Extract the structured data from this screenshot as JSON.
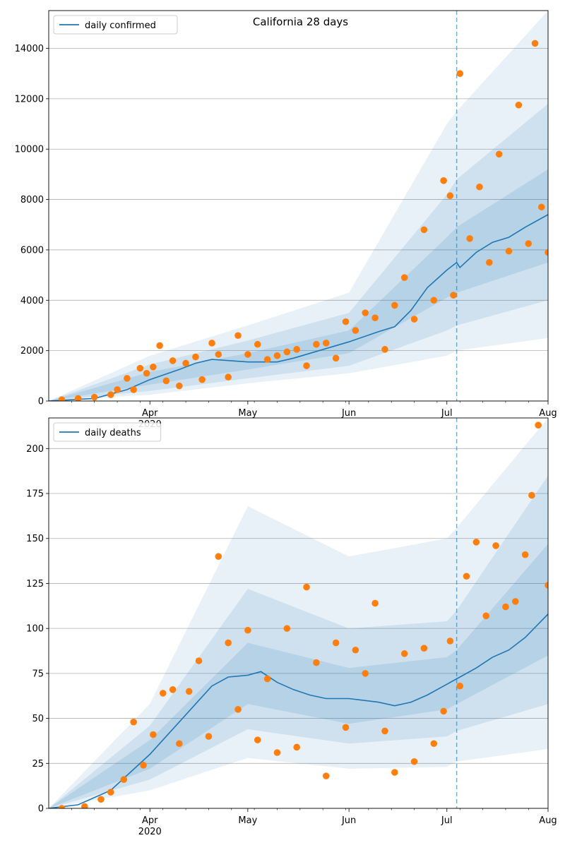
{
  "chart_data": [
    {
      "type": "line",
      "title": "California 28 days",
      "ylim": [
        0,
        15500
      ],
      "yticks": [
        0,
        2000,
        4000,
        6000,
        8000,
        10000,
        12000,
        14000
      ],
      "xticks": [
        {
          "x": "2020-04-01",
          "label": "Apr",
          "sublabel": "2020"
        },
        {
          "x": "2020-05-01",
          "label": "May"
        },
        {
          "x": "2020-06-01",
          "label": "Jun"
        },
        {
          "x": "2020-07-01",
          "label": "Jul"
        },
        {
          "x": "2020-08-01",
          "label": "Aug"
        }
      ],
      "xlim": [
        "2020-03-01",
        "2020-08-01"
      ],
      "forecast_start": "2020-07-04",
      "grid": "horizontal",
      "legend": {
        "position": "top-left",
        "entries": [
          {
            "label": "daily confirmed",
            "color": "#1f77b4"
          }
        ]
      },
      "colors": {
        "line": "#1f77b4",
        "points": "#ff7f0e",
        "band": "#1f77b4",
        "vline": "#1f77b4"
      },
      "series": [
        {
          "name": "daily confirmed",
          "kind": "line",
          "x": [
            "2020-03-01",
            "2020-03-15",
            "2020-03-25",
            "2020-04-01",
            "2020-04-10",
            "2020-04-15",
            "2020-04-20",
            "2020-05-01",
            "2020-05-10",
            "2020-05-15",
            "2020-06-01",
            "2020-06-10",
            "2020-06-15",
            "2020-06-20",
            "2020-06-25",
            "2020-07-01",
            "2020-07-04",
            "2020-07-05",
            "2020-07-10",
            "2020-07-15",
            "2020-07-20",
            "2020-07-25",
            "2020-08-01"
          ],
          "values": [
            0,
            100,
            450,
            850,
            1250,
            1500,
            1650,
            1550,
            1550,
            1700,
            2350,
            2750,
            2950,
            3600,
            4500,
            5200,
            5500,
            5300,
            5900,
            6300,
            6500,
            6900,
            7400
          ]
        },
        {
          "name": "observed daily confirmed",
          "kind": "scatter",
          "x": [
            "2020-03-05",
            "2020-03-10",
            "2020-03-15",
            "2020-03-20",
            "2020-03-22",
            "2020-03-25",
            "2020-03-27",
            "2020-03-29",
            "2020-03-31",
            "2020-04-02",
            "2020-04-04",
            "2020-04-06",
            "2020-04-08",
            "2020-04-10",
            "2020-04-12",
            "2020-04-15",
            "2020-04-17",
            "2020-04-20",
            "2020-04-22",
            "2020-04-25",
            "2020-04-28",
            "2020-05-01",
            "2020-05-04",
            "2020-05-07",
            "2020-05-10",
            "2020-05-13",
            "2020-05-16",
            "2020-05-19",
            "2020-05-22",
            "2020-05-25",
            "2020-05-28",
            "2020-05-31",
            "2020-06-03",
            "2020-06-06",
            "2020-06-09",
            "2020-06-12",
            "2020-06-15",
            "2020-06-18",
            "2020-06-21",
            "2020-06-24",
            "2020-06-27",
            "2020-06-30",
            "2020-07-02",
            "2020-07-03",
            "2020-07-05",
            "2020-07-08",
            "2020-07-11",
            "2020-07-14",
            "2020-07-17",
            "2020-07-20",
            "2020-07-23",
            "2020-07-26",
            "2020-07-28",
            "2020-07-30",
            "2020-08-01"
          ],
          "values": [
            50,
            100,
            150,
            250,
            450,
            900,
            450,
            1300,
            1100,
            1350,
            2200,
            800,
            1600,
            600,
            1500,
            1750,
            850,
            2300,
            1850,
            950,
            2600,
            1850,
            2250,
            1650,
            1800,
            1950,
            2050,
            1400,
            2250,
            2300,
            1700,
            3150,
            2800,
            3500,
            3300,
            2050,
            3800,
            4900,
            3250,
            6800,
            4000,
            8750,
            8150,
            4200,
            13000,
            6450,
            8500,
            5500,
            9800,
            5950,
            11750,
            6250,
            14200,
            7700,
            5900
          ]
        }
      ],
      "bands": [
        {
          "name": "inner interval",
          "x": [
            "2020-03-01",
            "2020-04-01",
            "2020-05-01",
            "2020-06-01",
            "2020-07-01",
            "2020-07-04",
            "2020-08-01"
          ],
          "low": [
            0,
            650,
            1250,
            1900,
            4100,
            4300,
            5500
          ],
          "high": [
            0,
            1150,
            1900,
            2800,
            6500,
            6900,
            9200
          ]
        },
        {
          "name": "middle interval",
          "x": [
            "2020-03-01",
            "2020-04-01",
            "2020-05-01",
            "2020-06-01",
            "2020-07-01",
            "2020-07-04",
            "2020-08-01"
          ],
          "low": [
            0,
            400,
            900,
            1400,
            2800,
            3000,
            4000
          ],
          "high": [
            0,
            1450,
            2400,
            3500,
            8200,
            8800,
            11800
          ]
        },
        {
          "name": "outer interval",
          "x": [
            "2020-03-01",
            "2020-04-01",
            "2020-05-01",
            "2020-06-01",
            "2020-07-01",
            "2020-07-04",
            "2020-08-01"
          ],
          "low": [
            0,
            250,
            700,
            1100,
            1800,
            2000,
            2500
          ],
          "high": [
            0,
            1800,
            3000,
            4300,
            11000,
            11500,
            15500
          ]
        }
      ]
    },
    {
      "type": "line",
      "title": "",
      "ylim": [
        0,
        217
      ],
      "yticks": [
        0,
        25,
        50,
        75,
        100,
        125,
        150,
        175,
        200
      ],
      "xticks": [
        {
          "x": "2020-04-01",
          "label": "Apr",
          "sublabel": "2020"
        },
        {
          "x": "2020-05-01",
          "label": "May"
        },
        {
          "x": "2020-06-01",
          "label": "Jun"
        },
        {
          "x": "2020-07-01",
          "label": "Jul"
        },
        {
          "x": "2020-08-01",
          "label": "Aug"
        }
      ],
      "xlim": [
        "2020-03-01",
        "2020-08-01"
      ],
      "forecast_start": "2020-07-04",
      "grid": "horizontal",
      "legend": {
        "position": "top-left",
        "entries": [
          {
            "label": "daily deaths",
            "color": "#1f77b4"
          }
        ]
      },
      "colors": {
        "line": "#1f77b4",
        "points": "#ff7f0e",
        "band": "#1f77b4",
        "vline": "#1f77b4"
      },
      "series": [
        {
          "name": "daily deaths",
          "kind": "line",
          "x": [
            "2020-03-01",
            "2020-03-10",
            "2020-03-20",
            "2020-04-01",
            "2020-04-10",
            "2020-04-15",
            "2020-04-20",
            "2020-04-25",
            "2020-05-01",
            "2020-05-05",
            "2020-05-10",
            "2020-05-15",
            "2020-05-20",
            "2020-05-25",
            "2020-06-01",
            "2020-06-10",
            "2020-06-15",
            "2020-06-20",
            "2020-06-25",
            "2020-07-01",
            "2020-07-04",
            "2020-07-05",
            "2020-07-10",
            "2020-07-15",
            "2020-07-20",
            "2020-07-25",
            "2020-08-01"
          ],
          "values": [
            0,
            2,
            10,
            30,
            48,
            58,
            68,
            73,
            74,
            76,
            70,
            66,
            63,
            61,
            61,
            59,
            57,
            59,
            63,
            69,
            72,
            73,
            78,
            84,
            88,
            95,
            108
          ]
        },
        {
          "name": "observed daily deaths",
          "kind": "scatter",
          "x": [
            "2020-03-05",
            "2020-03-12",
            "2020-03-17",
            "2020-03-20",
            "2020-03-24",
            "2020-03-27",
            "2020-03-30",
            "2020-04-02",
            "2020-04-05",
            "2020-04-08",
            "2020-04-10",
            "2020-04-13",
            "2020-04-16",
            "2020-04-19",
            "2020-04-22",
            "2020-04-25",
            "2020-04-28",
            "2020-05-01",
            "2020-05-04",
            "2020-05-07",
            "2020-05-10",
            "2020-05-13",
            "2020-05-16",
            "2020-05-19",
            "2020-05-22",
            "2020-05-25",
            "2020-05-28",
            "2020-05-31",
            "2020-06-03",
            "2020-06-06",
            "2020-06-09",
            "2020-06-12",
            "2020-06-15",
            "2020-06-18",
            "2020-06-21",
            "2020-06-24",
            "2020-06-27",
            "2020-06-30",
            "2020-07-02",
            "2020-07-05",
            "2020-07-07",
            "2020-07-10",
            "2020-07-13",
            "2020-07-16",
            "2020-07-19",
            "2020-07-22",
            "2020-07-25",
            "2020-07-27",
            "2020-07-29",
            "2020-08-01"
          ],
          "values": [
            0,
            1,
            5,
            9,
            16,
            48,
            24,
            41,
            64,
            66,
            36,
            65,
            82,
            40,
            140,
            92,
            55,
            99,
            38,
            72,
            31,
            100,
            34,
            123,
            81,
            18,
            92,
            45,
            88,
            75,
            114,
            43,
            20,
            86,
            26,
            89,
            36,
            54,
            93,
            68,
            129,
            148,
            107,
            146,
            112,
            115,
            141,
            174,
            213,
            124
          ]
        }
      ],
      "bands": [
        {
          "name": "inner interval",
          "x": [
            "2020-03-01",
            "2020-04-01",
            "2020-05-01",
            "2020-06-01",
            "2020-07-01",
            "2020-07-04",
            "2020-08-01"
          ],
          "low": [
            0,
            22,
            58,
            47,
            55,
            58,
            85
          ],
          "high": [
            0,
            38,
            92,
            78,
            84,
            88,
            147
          ]
        },
        {
          "name": "middle interval",
          "x": [
            "2020-03-01",
            "2020-04-01",
            "2020-05-01",
            "2020-06-01",
            "2020-07-01",
            "2020-07-04",
            "2020-08-01"
          ],
          "low": [
            0,
            16,
            44,
            36,
            40,
            43,
            58
          ],
          "high": [
            0,
            46,
            122,
            100,
            104,
            110,
            185
          ]
        },
        {
          "name": "outer interval",
          "x": [
            "2020-03-01",
            "2020-04-01",
            "2020-05-01",
            "2020-06-01",
            "2020-07-01",
            "2020-07-04",
            "2020-08-01"
          ],
          "low": [
            0,
            10,
            28,
            22,
            23,
            26,
            33
          ],
          "high": [
            0,
            58,
            168,
            140,
            150,
            156,
            217
          ]
        }
      ]
    }
  ]
}
